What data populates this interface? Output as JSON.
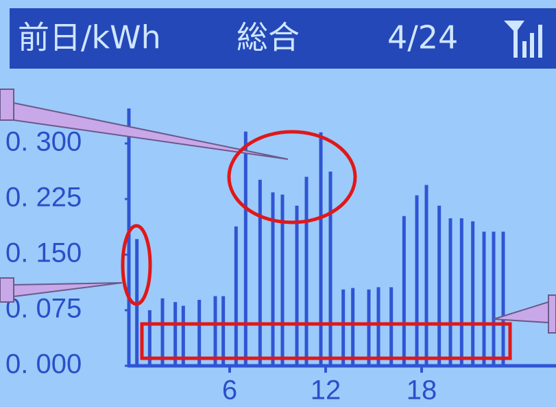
{
  "chart_data": {
    "type": "bar",
    "header": {
      "title": "前日/kWh",
      "mode": "総合",
      "date": "4/24"
    },
    "x": [
      0.2,
      1.0,
      1.8,
      2.6,
      3.1,
      4.1,
      5.1,
      5.6,
      6.4,
      7.0,
      7.9,
      8.7,
      9.3,
      10.2,
      10.8,
      11.7,
      12.3,
      13.1,
      13.7,
      14.7,
      15.3,
      16.1,
      16.9,
      17.7,
      18.3,
      19.1,
      19.8,
      20.5,
      21.2,
      21.9,
      22.5,
      23.1
    ],
    "values": [
      0.171,
      0.075,
      0.091,
      0.086,
      0.081,
      0.089,
      0.094,
      0.094,
      0.188,
      0.316,
      0.251,
      0.234,
      0.231,
      0.216,
      0.255,
      0.315,
      0.262,
      0.103,
      0.105,
      0.103,
      0.106,
      0.106,
      0.202,
      0.23,
      0.244,
      0.216,
      0.199,
      0.199,
      0.195,
      0.181,
      0.181,
      0.181
    ],
    "color": "#2f55d4",
    "xlim": [
      0,
      26.4
    ],
    "xticks": [
      6,
      12,
      18
    ],
    "ylim": [
      0,
      0.375
    ],
    "yticks": [
      {
        "value": 0,
        "label": "0. 000"
      },
      {
        "value": 0.075,
        "label": "0. 075"
      },
      {
        "value": 0.15,
        "label": "0. 150"
      },
      {
        "value": 0.225,
        "label": "0. 225"
      },
      {
        "value": 0.3,
        "label": "0. 300"
      }
    ]
  }
}
